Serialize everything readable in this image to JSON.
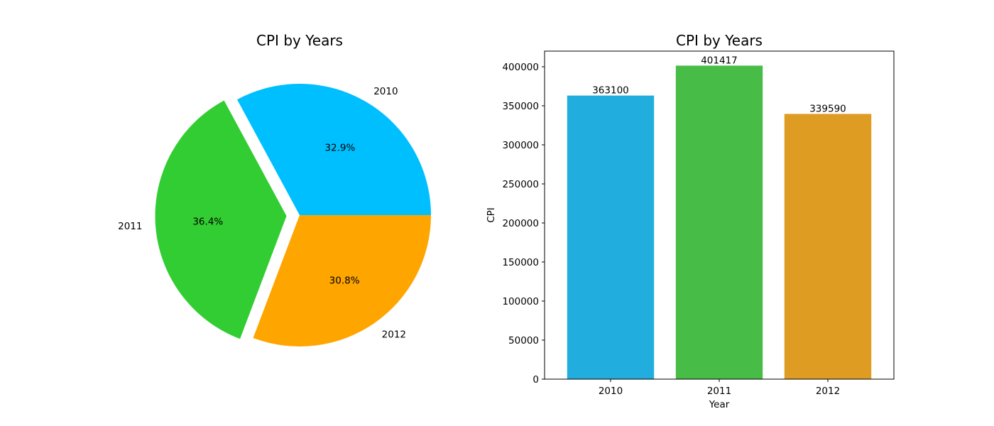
{
  "chart_data": [
    {
      "type": "pie",
      "title": "CPI by Years",
      "categories": [
        "2010",
        "2011",
        "2012"
      ],
      "values": [
        363100,
        401417,
        339590
      ],
      "percent_labels": [
        "32.9%",
        "36.4%",
        "30.8%"
      ],
      "exploded": "2011",
      "colors": [
        "#00bfff",
        "#32cd32",
        "#ffa500"
      ]
    },
    {
      "type": "bar",
      "title": "CPI by Years",
      "xlabel": "Year",
      "ylabel": "CPI",
      "categories": [
        "2010",
        "2011",
        "2012"
      ],
      "values": [
        363100,
        401417,
        339590
      ],
      "data_labels": [
        "363100",
        "401417",
        "339590"
      ],
      "ylim": [
        0,
        420000
      ],
      "yticks": [
        0,
        50000,
        100000,
        150000,
        200000,
        250000,
        300000,
        350000,
        400000
      ],
      "colors": [
        "#21aede",
        "#47bc47",
        "#df9c22"
      ],
      "grid": false
    }
  ]
}
